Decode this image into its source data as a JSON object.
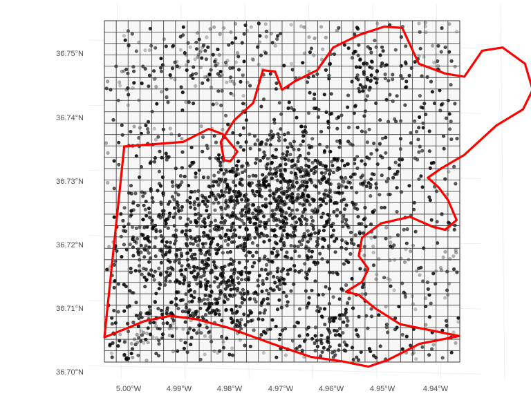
{
  "map": {
    "y_axis_labels": [
      "36.75°N",
      "36.74°N",
      "36.73°N",
      "36.72°N",
      "36.71°N",
      "36.70°N"
    ],
    "x_axis_labels": [
      "5.00°W",
      "4.99°W",
      "4.98°W",
      "4.97°W",
      "4.96°W",
      "4.95°W",
      "4.94°W"
    ],
    "lat_ticks": [
      36.75,
      36.74,
      36.73,
      36.72,
      36.71,
      36.7
    ],
    "lon_ticks": [
      -5.0,
      -4.99,
      -4.98,
      -4.97,
      -4.96,
      -4.95,
      -4.94
    ],
    "extent": {
      "lon_min": -5.0023,
      "lon_max": -4.9467,
      "lat_min": 36.7012,
      "lat_max": 36.7536
    },
    "grid_cells": {
      "columns": 30,
      "rows": 30
    },
    "point_count": 2600,
    "colors": {
      "boundary": "#ff0000",
      "points": "#000000",
      "cell_lines": "#333333",
      "panel_background": "#f7f7f7",
      "background_grid": "#ebebeb",
      "tick_text": "#4d4d4d"
    },
    "boundary_outline": [
      [
        -5.0023,
        36.705
      ],
      [
        -4.9992,
        36.7343
      ],
      [
        -4.99,
        36.735
      ],
      [
        -4.986,
        36.737
      ],
      [
        -4.9838,
        36.7362
      ],
      [
        -4.9815,
        36.7335
      ],
      [
        -4.9826,
        36.732
      ],
      [
        -4.9836,
        36.7322
      ],
      [
        -4.9841,
        36.735
      ],
      [
        -4.982,
        36.7383
      ],
      [
        -4.979,
        36.741
      ],
      [
        -4.9775,
        36.746
      ],
      [
        -4.9756,
        36.7458
      ],
      [
        -4.9745,
        36.743
      ],
      [
        -4.9725,
        36.7443
      ],
      [
        -4.969,
        36.746
      ],
      [
        -4.9665,
        36.7495
      ],
      [
        -4.9625,
        36.7514
      ],
      [
        -4.9585,
        36.7527
      ],
      [
        -4.9557,
        36.7525
      ],
      [
        -4.9531,
        36.747
      ],
      [
        -4.949,
        36.7455
      ],
      [
        -4.946,
        36.745
      ],
      [
        -4.9432,
        36.749
      ],
      [
        -4.94,
        36.7495
      ],
      [
        -4.9365,
        36.747
      ],
      [
        -4.9353,
        36.743
      ],
      [
        -4.9368,
        36.74
      ],
      [
        -4.941,
        36.7375
      ],
      [
        -4.946,
        36.733
      ],
      [
        -4.9495,
        36.731
      ],
      [
        -4.9517,
        36.7295
      ],
      [
        -4.95,
        36.728
      ],
      [
        -4.9485,
        36.726
      ],
      [
        -4.9472,
        36.723
      ],
      [
        -4.949,
        36.7215
      ],
      [
        -4.951,
        36.722
      ],
      [
        -4.9545,
        36.7235
      ],
      [
        -4.959,
        36.7225
      ],
      [
        -4.962,
        36.7203
      ],
      [
        -4.9625,
        36.7175
      ],
      [
        -4.961,
        36.7155
      ],
      [
        -4.962,
        36.7135
      ],
      [
        -4.9645,
        36.712
      ],
      [
        -4.9625,
        36.7115
      ],
      [
        -4.96,
        36.7095
      ],
      [
        -4.956,
        36.707
      ],
      [
        -4.9468,
        36.7052
      ],
      [
        -4.953,
        36.704
      ],
      [
        -4.958,
        36.7015
      ],
      [
        -4.961,
        36.7005
      ],
      [
        -4.965,
        36.7013
      ],
      [
        -4.97,
        36.702
      ],
      [
        -4.976,
        36.704
      ],
      [
        -4.983,
        36.7065
      ],
      [
        -4.988,
        36.7078
      ],
      [
        -4.992,
        36.7083
      ],
      [
        -4.996,
        36.7075
      ],
      [
        -5.0023,
        36.705
      ]
    ]
  }
}
